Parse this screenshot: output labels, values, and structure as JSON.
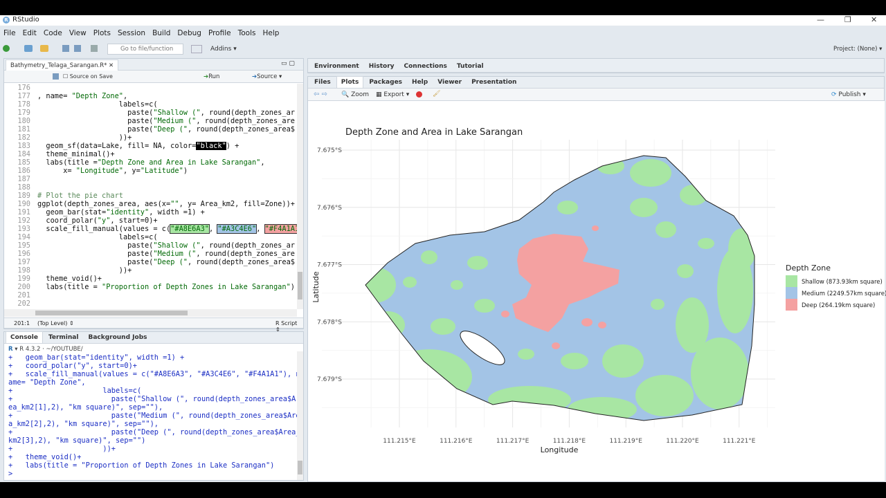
{
  "window": {
    "title": "RStudio"
  },
  "menu": [
    "File",
    "Edit",
    "Code",
    "View",
    "Plots",
    "Session",
    "Build",
    "Debug",
    "Profile",
    "Tools",
    "Help"
  ],
  "toolbar": {
    "goto": "Go to file/function",
    "addins": "Addins",
    "project": "Project: (None)"
  },
  "editor": {
    "tab": "Bathymetry_Telaga_Sarangan.R*",
    "source_on_save": "Source on Save",
    "run": "Run",
    "source": "Source",
    "lines": [
      {
        "n": 176
      },
      {
        "n": 177,
        "code": ", name= \"Depth Zone\","
      },
      {
        "n": 178,
        "code": "                   labels=c("
      },
      {
        "n": 179,
        "code": "                     paste(\"Shallow (\", round(depth_zones_ar"
      },
      {
        "n": 180,
        "code": "                     paste(\"Medium (\", round(depth_zones_are"
      },
      {
        "n": 181,
        "code": "                     paste(\"Deep (\", round(depth_zones_area$"
      },
      {
        "n": 182,
        "code": "                   ))+"
      },
      {
        "n": 183,
        "code": "  geom_sf(data=Lake, fill= NA, color=\"black\") +"
      },
      {
        "n": 184,
        "code": "  theme_minimal()+"
      },
      {
        "n": 185,
        "code": "  labs(title =\"Depth Zone and Area in Lake Sarangan\","
      },
      {
        "n": 186,
        "code": "      x= \"Longitude\", y=\"Latitude\")"
      },
      {
        "n": 187
      },
      {
        "n": 188
      },
      {
        "n": 189,
        "code": "# Plot the pie chart"
      },
      {
        "n": 190,
        "code": "ggplot(depth_zones_area, aes(x=\"\", y= Area_km2, fill=Zone))+"
      },
      {
        "n": 191,
        "code": "  geom_bar(stat=\"identity\", width =1) +"
      },
      {
        "n": 192,
        "code": "  coord_polar(\"y\", start=0)+"
      },
      {
        "n": 193,
        "code": "  scale_fill_manual(values = c(\"#A8E6A3\", \"#A3C4E6\", \"#F4A1A1"
      },
      {
        "n": 194,
        "code": "                   labels=c("
      },
      {
        "n": 195,
        "code": "                     paste(\"Shallow (\", round(depth_zones_ar"
      },
      {
        "n": 196,
        "code": "                     paste(\"Medium (\", round(depth_zones_are"
      },
      {
        "n": 197,
        "code": "                     paste(\"Deep (\", round(depth_zones_area$"
      },
      {
        "n": 198,
        "code": "                   ))+"
      },
      {
        "n": 199,
        "code": "  theme_void()+"
      },
      {
        "n": 200,
        "code": "  labs(title = \"Proportion of Depth Zones in Lake Sarangan\")"
      },
      {
        "n": 201
      },
      {
        "n": 202
      }
    ],
    "status": {
      "position": "201:1",
      "scope": "(Top Level)",
      "type": "R Script"
    }
  },
  "console": {
    "tabs": [
      "Console",
      "Terminal",
      "Background Jobs"
    ],
    "path": "R 4.3.2 · ~/YOUTUBE/",
    "lines": [
      "+   geom_bar(stat=\"identity\", width =1) +",
      "+   coord_polar(\"y\", start=0)+",
      "+   scale_fill_manual(values = c(\"#A8E6A3\", \"#A3C4E6\", \"#F4A1A1\"), n",
      "ame= \"Depth Zone\",",
      "+                     labels=c(",
      "+                       paste(\"Shallow (\", round(depth_zones_area$Ar",
      "ea_km2[1],2), \"km square)\", sep=\"\"),",
      "+                       paste(\"Medium (\", round(depth_zones_area$Are",
      "a_km2[2],2), \"km square)\", sep=\"\"),",
      "+                       paste(\"Deep (\", round(depth_zones_area$Area_",
      "km2[3],2), \"km square)\", sep=\"\")",
      "+                     ))+",
      "+   theme_void()+",
      "+   labs(title = \"Proportion of Depth Zones in Lake Sarangan\")",
      ">"
    ]
  },
  "env_tabs": [
    "Environment",
    "History",
    "Connections",
    "Tutorial"
  ],
  "viewer_tabs": [
    "Files",
    "Plots",
    "Packages",
    "Help",
    "Viewer",
    "Presentation"
  ],
  "plot_toolbar": {
    "zoom": "Zoom",
    "export": "Export",
    "publish": "Publish"
  },
  "plot": {
    "title": "Depth Zone and Area in Lake Sarangan",
    "x_label": "Longitude",
    "y_label": "Latitude",
    "x_ticks": [
      "111.215°E",
      "111.216°E",
      "111.217°E",
      "111.218°E",
      "111.219°E",
      "111.220°E",
      "111.221°E"
    ],
    "y_ticks": [
      "7.675°S",
      "7.676°S",
      "7.677°S",
      "7.678°S",
      "7.679°S"
    ],
    "legend": {
      "title": "Depth Zone",
      "items": [
        {
          "label": "Shallow (873.93km square)",
          "color": "#A8E6A3"
        },
        {
          "label": "Medium (2249.57km square)",
          "color": "#A3C4E6"
        },
        {
          "label": "Deep (264.19km square)",
          "color": "#F4A1A1"
        }
      ]
    }
  }
}
